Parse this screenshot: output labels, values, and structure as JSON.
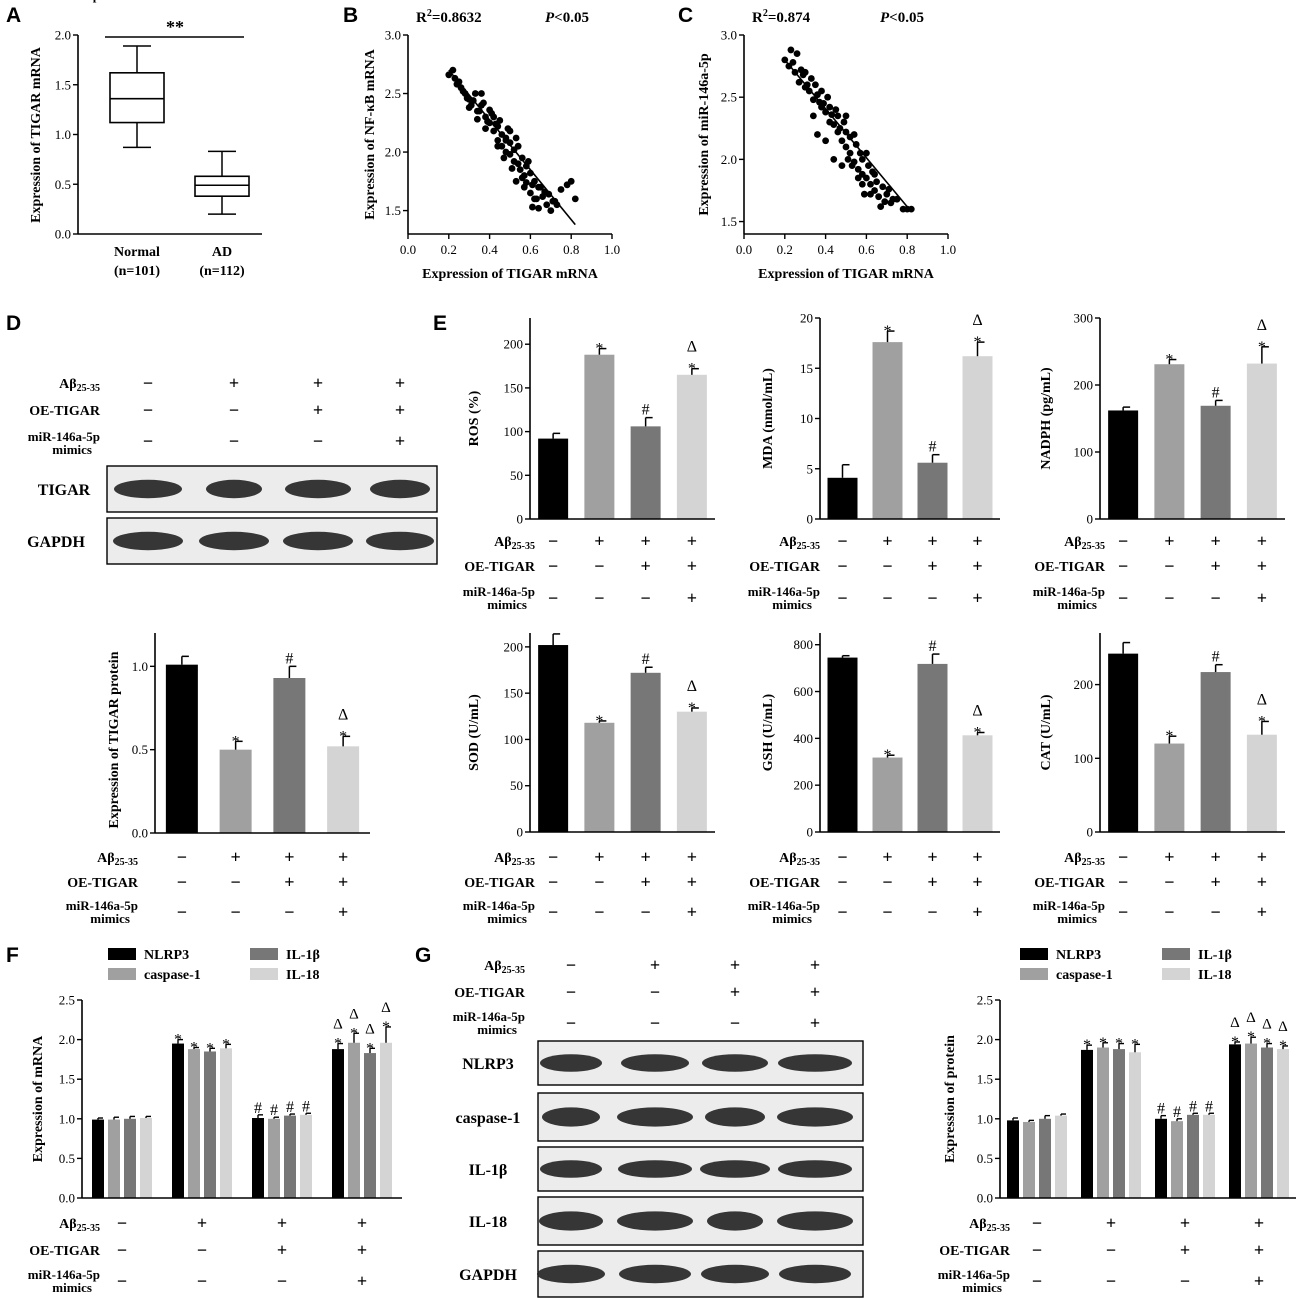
{
  "panels": {
    "A": "A",
    "B": "B",
    "C": "C",
    "D": "D",
    "E": "E",
    "F": "F",
    "G": "G"
  },
  "colors": {
    "black": "#000000",
    "lightgray": "#a0a0a0",
    "darkgray": "#777777",
    "palegray": "#d4d4d4",
    "blot_bg": "#ececec",
    "band": "#222222"
  },
  "row_labels": {
    "ab": "Aβ25-35",
    "oe": "OE-TIGAR",
    "mir1": "miR-146a-5p",
    "mir2": "mimics"
  },
  "condition_signs": {
    "ab": [
      "−",
      "+",
      "+",
      "+"
    ],
    "oe": [
      "−",
      "−",
      "+",
      "+"
    ],
    "mir": [
      "−",
      "−",
      "−",
      "+"
    ]
  },
  "legend": {
    "items": [
      "NLRP3",
      "caspase-1",
      "IL-1β",
      "IL-18"
    ]
  },
  "blots": {
    "D_rows": [
      "TIGAR",
      "GAPDH"
    ],
    "G_rows": [
      "NLRP3",
      "caspase-1",
      "IL-1β",
      "IL-18",
      "GAPDH"
    ]
  },
  "chart_data": [
    {
      "id": "A",
      "type": "box",
      "ylabel": "Expression of TIGAR mRNA",
      "ylim": [
        0,
        2.0
      ],
      "yticks": [
        "0.0",
        "0.5",
        "1.0",
        "1.5",
        "2.0"
      ],
      "categories": [
        "Normal",
        "AD"
      ],
      "category_n": [
        "(n=101)",
        "(n=112)"
      ],
      "boxes": [
        {
          "min": 0.87,
          "q1": 1.12,
          "median": 1.36,
          "q3": 1.62,
          "max": 1.89
        },
        {
          "min": 0.2,
          "q1": 0.38,
          "median": 0.49,
          "q3": 0.58,
          "max": 0.83
        }
      ],
      "annotation": "**"
    },
    {
      "id": "B",
      "type": "scatter",
      "xlabel": "Expression of TIGAR mRNA",
      "ylabel": "Expression of NF-κB mRNA",
      "xlim": [
        0,
        1.0
      ],
      "ylim": [
        1.3,
        3.0
      ],
      "xticks": [
        "0.0",
        "0.2",
        "0.4",
        "0.6",
        "0.8",
        "1.0"
      ],
      "yticks": [
        "1.5",
        "2.0",
        "2.5",
        "3.0"
      ],
      "r2_label": "R",
      "r2_sup": "2",
      "r2_value": "=0.8632",
      "p_label": "P",
      "p_value": "<0.05",
      "fit": {
        "x": [
          0.2,
          0.82
        ],
        "y": [
          2.7,
          1.38
        ]
      },
      "points_x": [
        0.2,
        0.22,
        0.24,
        0.26,
        0.28,
        0.3,
        0.3,
        0.32,
        0.34,
        0.34,
        0.36,
        0.38,
        0.38,
        0.4,
        0.4,
        0.42,
        0.42,
        0.44,
        0.44,
        0.46,
        0.46,
        0.48,
        0.48,
        0.5,
        0.5,
        0.5,
        0.52,
        0.52,
        0.54,
        0.54,
        0.55,
        0.56,
        0.56,
        0.58,
        0.58,
        0.6,
        0.6,
        0.62,
        0.62,
        0.64,
        0.64,
        0.66,
        0.68,
        0.7,
        0.72,
        0.75,
        0.78,
        0.8,
        0.23,
        0.27,
        0.33,
        0.37,
        0.41,
        0.45,
        0.49,
        0.53,
        0.57,
        0.61,
        0.65,
        0.69,
        0.73,
        0.44,
        0.47,
        0.51,
        0.59,
        0.63,
        0.35,
        0.29,
        0.25,
        0.31,
        0.39,
        0.43,
        0.57,
        0.61,
        0.67,
        0.71,
        0.53,
        0.48,
        0.36,
        0.82
      ],
      "points_y": [
        2.66,
        2.7,
        2.58,
        2.55,
        2.5,
        2.45,
        2.38,
        2.44,
        2.35,
        2.28,
        2.4,
        2.3,
        2.2,
        2.25,
        2.36,
        2.18,
        2.3,
        2.1,
        2.22,
        2.15,
        2.05,
        2.12,
        2.0,
        1.98,
        2.08,
        2.18,
        1.92,
        2.02,
        1.9,
        2.05,
        1.85,
        1.95,
        1.78,
        1.88,
        1.74,
        1.82,
        1.65,
        1.75,
        1.6,
        1.7,
        1.52,
        1.62,
        1.55,
        1.5,
        1.58,
        1.68,
        1.72,
        1.75,
        2.63,
        2.52,
        2.5,
        2.42,
        2.33,
        2.27,
        2.2,
        2.12,
        1.8,
        1.72,
        1.7,
        1.64,
        1.55,
        2.05,
        1.95,
        1.86,
        1.92,
        1.6,
        2.35,
        2.46,
        2.6,
        2.4,
        2.26,
        2.24,
        1.7,
        1.53,
        1.66,
        1.58,
        1.75,
        2.1,
        2.5,
        1.6
      ]
    },
    {
      "id": "C",
      "type": "scatter",
      "xlabel": "Expression of TIGAR mRNA",
      "ylabel": "Expression of miR-146a-5p",
      "xlim": [
        0,
        1.0
      ],
      "ylim": [
        1.4,
        3.0
      ],
      "xticks": [
        "0.0",
        "0.2",
        "0.4",
        "0.6",
        "0.8",
        "1.0"
      ],
      "yticks": [
        "1.5",
        "2.0",
        "2.5",
        "3.0"
      ],
      "r2_label": "R",
      "r2_sup": "2",
      "r2_value": "=0.874",
      "p_label": "P",
      "p_value": "<0.05",
      "fit": {
        "x": [
          0.2,
          0.82
        ],
        "y": [
          2.8,
          1.58
        ]
      },
      "points_x": [
        0.2,
        0.22,
        0.23,
        0.25,
        0.26,
        0.27,
        0.28,
        0.3,
        0.3,
        0.32,
        0.33,
        0.34,
        0.35,
        0.36,
        0.38,
        0.38,
        0.4,
        0.41,
        0.42,
        0.42,
        0.44,
        0.45,
        0.46,
        0.46,
        0.48,
        0.49,
        0.5,
        0.5,
        0.52,
        0.52,
        0.54,
        0.55,
        0.56,
        0.57,
        0.58,
        0.58,
        0.6,
        0.61,
        0.62,
        0.63,
        0.64,
        0.66,
        0.68,
        0.7,
        0.72,
        0.75,
        0.78,
        0.8,
        0.82,
        0.24,
        0.29,
        0.31,
        0.37,
        0.39,
        0.43,
        0.47,
        0.51,
        0.53,
        0.59,
        0.65,
        0.67,
        0.71,
        0.73,
        0.44,
        0.48,
        0.56,
        0.6,
        0.62,
        0.34,
        0.36,
        0.4,
        0.5,
        0.54,
        0.58,
        0.64,
        0.69
      ],
      "points_y": [
        2.8,
        2.75,
        2.88,
        2.7,
        2.85,
        2.62,
        2.72,
        2.58,
        2.7,
        2.55,
        2.65,
        2.48,
        2.6,
        2.52,
        2.42,
        2.55,
        2.38,
        2.5,
        2.3,
        2.42,
        2.28,
        2.4,
        2.22,
        2.35,
        2.15,
        2.3,
        2.1,
        2.22,
        2.05,
        2.18,
        1.98,
        2.12,
        1.92,
        2.05,
        1.88,
        2.0,
        1.85,
        1.95,
        1.8,
        1.9,
        1.75,
        1.7,
        1.78,
        1.72,
        1.65,
        1.68,
        1.6,
        1.6,
        1.6,
        2.78,
        2.68,
        2.6,
        2.46,
        2.45,
        2.36,
        2.25,
        2.0,
        1.95,
        1.72,
        1.82,
        1.62,
        1.76,
        1.68,
        2.0,
        1.95,
        1.85,
        2.05,
        1.72,
        2.35,
        2.2,
        2.15,
        2.35,
        2.2,
        1.8,
        1.88,
        1.66
      ]
    },
    {
      "id": "D-bar",
      "type": "bar",
      "ylabel": "Expression of TIGAR protein",
      "ylim": [
        0,
        1.2
      ],
      "yticks": [
        "0.0",
        "0.5",
        "1.0"
      ],
      "values": [
        1.01,
        0.5,
        0.93,
        0.52
      ],
      "errors": [
        0.05,
        0.05,
        0.07,
        0.06
      ],
      "marks": [
        [],
        [
          "*"
        ],
        [
          "#"
        ],
        [
          "*",
          "Δ"
        ]
      ]
    },
    {
      "id": "E-ROS",
      "type": "bar",
      "ylabel": "ROS (%)",
      "ylim": [
        0,
        230
      ],
      "yticks": [
        "0",
        "50",
        "100",
        "150",
        "200"
      ],
      "values": [
        92,
        188,
        106,
        165
      ],
      "errors": [
        6,
        7,
        10,
        7
      ],
      "marks": [
        [],
        [
          "*"
        ],
        [
          "#"
        ],
        [
          "*",
          "Δ"
        ]
      ]
    },
    {
      "id": "E-MDA",
      "type": "bar",
      "ylabel": "MDA (nmol/mL)",
      "ylim": [
        0,
        20
      ],
      "yticks": [
        "0",
        "5",
        "10",
        "15",
        "20"
      ],
      "values": [
        4.1,
        17.6,
        5.6,
        16.2
      ],
      "errors": [
        1.3,
        1.1,
        0.8,
        1.4
      ],
      "marks": [
        [],
        [
          "*"
        ],
        [
          "#"
        ],
        [
          "*",
          "Δ"
        ]
      ]
    },
    {
      "id": "E-NADPH",
      "type": "bar",
      "ylabel": "NADPH (pg/mL)",
      "ylim": [
        0,
        300
      ],
      "yticks": [
        "0",
        "100",
        "200",
        "300"
      ],
      "values": [
        162,
        231,
        169,
        232
      ],
      "errors": [
        5,
        7,
        8,
        25
      ],
      "marks": [
        [],
        [
          "*"
        ],
        [
          "#"
        ],
        [
          "*",
          "Δ"
        ]
      ]
    },
    {
      "id": "E-SOD",
      "type": "bar",
      "ylabel": "SOD (U/mL)",
      "ylim": [
        0,
        215
      ],
      "yticks": [
        "0",
        "50",
        "100",
        "150",
        "200"
      ],
      "values": [
        202,
        118,
        172,
        130
      ],
      "errors": [
        12,
        2,
        6,
        4
      ],
      "marks": [
        [],
        [
          "*"
        ],
        [
          "#"
        ],
        [
          "*",
          "Δ"
        ]
      ]
    },
    {
      "id": "E-GSH",
      "type": "bar",
      "ylabel": "GSH (U/mL)",
      "ylim": [
        0,
        850
      ],
      "yticks": [
        "0",
        "200",
        "400",
        "600",
        "800"
      ],
      "values": [
        745,
        318,
        718,
        413
      ],
      "errors": [
        8,
        10,
        42,
        12
      ],
      "marks": [
        [],
        [
          "*"
        ],
        [
          "#"
        ],
        [
          "*",
          "Δ"
        ]
      ]
    },
    {
      "id": "E-CAT",
      "type": "bar",
      "ylabel": "CAT (U/mL)",
      "ylim": [
        0,
        270
      ],
      "yticks": [
        "0",
        "100",
        "200"
      ],
      "values": [
        242,
        120,
        217,
        132
      ],
      "errors": [
        15,
        10,
        10,
        18
      ],
      "marks": [
        [],
        [
          "*"
        ],
        [
          "#"
        ],
        [
          "*",
          "Δ"
        ]
      ]
    },
    {
      "id": "F",
      "type": "grouped-bar",
      "ylabel": "Expression of mRNA",
      "ylim": [
        0,
        2.5
      ],
      "yticks": [
        "0.0",
        "0.5",
        "1.0",
        "1.5",
        "2.0",
        "2.5"
      ],
      "series": [
        {
          "name": "NLRP3",
          "values": [
            0.99,
            1.95,
            1.01,
            1.88
          ],
          "errors": [
            0.02,
            0.05,
            0.04,
            0.07
          ]
        },
        {
          "name": "caspase-1",
          "values": [
            0.99,
            1.88,
            1.0,
            1.96
          ],
          "errors": [
            0.03,
            0.02,
            0.02,
            0.12
          ]
        },
        {
          "name": "IL-1β",
          "values": [
            1.0,
            1.85,
            1.04,
            1.83
          ],
          "errors": [
            0.03,
            0.04,
            0.02,
            0.06
          ]
        },
        {
          "name": "IL-18",
          "values": [
            1.01,
            1.89,
            1.05,
            1.96
          ],
          "errors": [
            0.02,
            0.05,
            0.02,
            0.2
          ]
        }
      ],
      "marks": [
        [
          [],
          [],
          [],
          []
        ],
        [
          [
            "*"
          ],
          [
            "*"
          ],
          [
            "*"
          ],
          [
            "*"
          ]
        ],
        [
          [
            "#"
          ],
          [
            "#"
          ],
          [
            "#"
          ],
          [
            "#"
          ]
        ],
        [
          [
            "*",
            "Δ"
          ],
          [
            "*",
            "Δ"
          ],
          [
            "*",
            "Δ"
          ],
          [
            "*",
            "Δ"
          ]
        ]
      ]
    },
    {
      "id": "G-bar",
      "type": "grouped-bar",
      "ylabel": "Expression of protein",
      "ylim": [
        0,
        2.5
      ],
      "yticks": [
        "0.0",
        "0.5",
        "1.0",
        "1.5",
        "2.0",
        "2.5"
      ],
      "series": [
        {
          "name": "NLRP3",
          "values": [
            0.98,
            1.87,
            1.0,
            1.94
          ],
          "errors": [
            0.03,
            0.06,
            0.04,
            0.03
          ]
        },
        {
          "name": "caspase-1",
          "values": [
            0.96,
            1.9,
            0.97,
            1.95
          ],
          "errors": [
            0.02,
            0.06,
            0.03,
            0.08
          ]
        },
        {
          "name": "IL-1β",
          "values": [
            1.0,
            1.88,
            1.05,
            1.9
          ],
          "errors": [
            0.04,
            0.07,
            0.02,
            0.05
          ]
        },
        {
          "name": "IL-18",
          "values": [
            1.04,
            1.84,
            1.05,
            1.88
          ],
          "errors": [
            0.02,
            0.1,
            0.02,
            0.04
          ]
        }
      ],
      "marks": [
        [
          [],
          [],
          [],
          []
        ],
        [
          [
            "*"
          ],
          [
            "*"
          ],
          [
            "*"
          ],
          [
            "*"
          ]
        ],
        [
          [
            "#"
          ],
          [
            "#"
          ],
          [
            "#"
          ],
          [
            "#"
          ]
        ],
        [
          [
            "*",
            "Δ"
          ],
          [
            "*",
            "Δ"
          ],
          [
            "*",
            "Δ"
          ],
          [
            "*",
            "Δ"
          ]
        ]
      ]
    }
  ]
}
